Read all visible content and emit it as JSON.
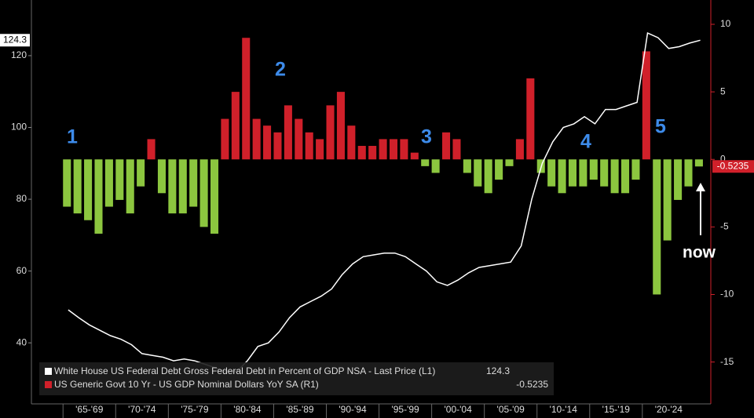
{
  "chart_data": {
    "type": "bar-line",
    "x": [
      1965,
      1966,
      1967,
      1968,
      1969,
      1970,
      1971,
      1972,
      1973,
      1974,
      1975,
      1976,
      1977,
      1978,
      1979,
      1980,
      1981,
      1982,
      1983,
      1984,
      1985,
      1986,
      1987,
      1988,
      1989,
      1990,
      1991,
      1992,
      1993,
      1994,
      1995,
      1996,
      1997,
      1998,
      1999,
      2000,
      2001,
      2002,
      2003,
      2004,
      2005,
      2006,
      2007,
      2008,
      2009,
      2010,
      2011,
      2012,
      2013,
      2014,
      2015,
      2016,
      2017,
      2018,
      2019,
      2020,
      2021,
      2022,
      2023,
      2024,
      2025
    ],
    "series": [
      {
        "name": "White House US Federal Debt Gross Federal Debt in Percent of GDP NSA - Last Price (L1)",
        "type": "line",
        "color": "#ffffff",
        "values": [
          49.2,
          47,
          45,
          43.5,
          42,
          41,
          39.5,
          37,
          36.5,
          36,
          35,
          35.5,
          35,
          34,
          33,
          32,
          32,
          35,
          39,
          40,
          43,
          47,
          50,
          51.5,
          53,
          55,
          59,
          62,
          64,
          64.5,
          65,
          65,
          64,
          62,
          60,
          57,
          56,
          57.5,
          59.5,
          61,
          61.5,
          62,
          62.5,
          67,
          80,
          90,
          96,
          100,
          101,
          103,
          101,
          105,
          105,
          106,
          107,
          126.3,
          125,
          122,
          122.5,
          123.5,
          124.3
        ]
      },
      {
        "name": "US Generic Govt 10 Yr - US GDP Nominal Dollars YoY SA (R1)",
        "type": "bar",
        "axis": "y2",
        "color": "#d0202a",
        "negative_color": "#8cc63f",
        "values": [
          -3.5,
          -4,
          -4.5,
          -5.5,
          -3.5,
          -3,
          -4,
          -2,
          1.5,
          -2.5,
          -4,
          -4,
          -3.5,
          -5,
          -5.5,
          3,
          5,
          9,
          3,
          2.5,
          2,
          4,
          3,
          2,
          1.5,
          4,
          5,
          2.5,
          1,
          1,
          1.5,
          1.5,
          1.5,
          0.5,
          -0.5,
          -1,
          2,
          1.5,
          -1,
          -2,
          -2.5,
          -1.5,
          -0.5,
          1.5,
          6,
          -1,
          -2,
          -2.5,
          -2,
          -2,
          -1.5,
          -2,
          -2.5,
          -2.5,
          -1.5,
          8,
          -10,
          -6,
          -3,
          -2,
          -0.5235
        ]
      }
    ],
    "xlim": [
      1962,
      2026.5
    ],
    "xticks": [
      {
        "value": 1965,
        "label": "'65-'69"
      },
      {
        "value": 1970,
        "label": "'70-'74"
      },
      {
        "value": 1975,
        "label": "'75-'79"
      },
      {
        "value": 1980,
        "label": "'80-'84"
      },
      {
        "value": 1985,
        "label": "'85-'89"
      },
      {
        "value": 1990,
        "label": "'90-'94"
      },
      {
        "value": 1995,
        "label": "'95-'99"
      },
      {
        "value": 2000,
        "label": "'00-'04"
      },
      {
        "value": 2005,
        "label": "'05-'09"
      },
      {
        "value": 2010,
        "label": "'10-'14"
      },
      {
        "value": 2015,
        "label": "'15-'19"
      },
      {
        "value": 2020,
        "label": "'20-'24"
      }
    ],
    "ylim": [
      23,
      135.5
    ],
    "yticks": [
      40,
      60,
      80,
      100,
      120
    ],
    "y2lim": [
      -18.1,
      11.8
    ],
    "y2ticks": [
      -15,
      -10,
      -5,
      0,
      5,
      10
    ],
    "annotations": [
      "1",
      "2",
      "3",
      "4",
      "5",
      "now"
    ]
  }
}
